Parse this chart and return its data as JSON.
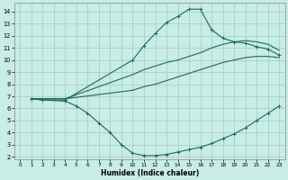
{
  "xlabel": "Humidex (Indice chaleur)",
  "bg_color": "#c8ece6",
  "grid_color": "#a0ccc4",
  "line_color": "#1a6b5a",
  "xlim": [
    -0.5,
    23.5
  ],
  "ylim": [
    1.8,
    14.7
  ],
  "xticks": [
    0,
    1,
    2,
    3,
    4,
    5,
    6,
    7,
    8,
    9,
    10,
    11,
    12,
    13,
    14,
    15,
    16,
    17,
    18,
    19,
    20,
    21,
    22,
    23
  ],
  "yticks": [
    2,
    3,
    4,
    5,
    6,
    7,
    8,
    9,
    10,
    11,
    12,
    13,
    14
  ],
  "curve_main_x": [
    1,
    2,
    4,
    10,
    11,
    12,
    13,
    14,
    15,
    16,
    17,
    18,
    19,
    20,
    21,
    22,
    23
  ],
  "curve_main_y": [
    6.8,
    6.7,
    6.7,
    10.0,
    11.2,
    12.2,
    13.1,
    13.6,
    14.2,
    14.2,
    12.5,
    11.8,
    11.5,
    11.4,
    11.1,
    10.9,
    10.4
  ],
  "curve_upper_x": [
    1,
    4,
    10,
    11,
    12,
    13,
    14,
    15,
    16,
    17,
    18,
    19,
    20,
    21,
    22,
    23
  ],
  "curve_upper_y": [
    6.8,
    6.8,
    8.8,
    9.2,
    9.5,
    9.8,
    10.0,
    10.3,
    10.6,
    11.0,
    11.3,
    11.5,
    11.6,
    11.5,
    11.3,
    10.8
  ],
  "curve_lower_x": [
    1,
    4,
    10,
    11,
    12,
    13,
    14,
    15,
    16,
    17,
    18,
    19,
    20,
    21,
    22,
    23
  ],
  "curve_lower_y": [
    6.8,
    6.8,
    7.5,
    7.8,
    8.0,
    8.3,
    8.6,
    8.9,
    9.2,
    9.5,
    9.8,
    10.0,
    10.2,
    10.3,
    10.3,
    10.2
  ],
  "curve_zigzag_x": [
    1,
    2,
    4,
    5,
    6,
    7,
    8,
    9,
    10,
    11,
    12,
    13,
    14,
    15,
    16,
    17,
    18,
    19,
    20,
    21,
    22,
    23
  ],
  "curve_zigzag_y": [
    6.8,
    6.7,
    6.6,
    6.2,
    5.6,
    4.8,
    4.0,
    3.0,
    2.3,
    2.1,
    2.1,
    2.2,
    2.4,
    2.6,
    2.8,
    3.1,
    3.5,
    3.9,
    4.4,
    5.0,
    5.6,
    6.2
  ]
}
